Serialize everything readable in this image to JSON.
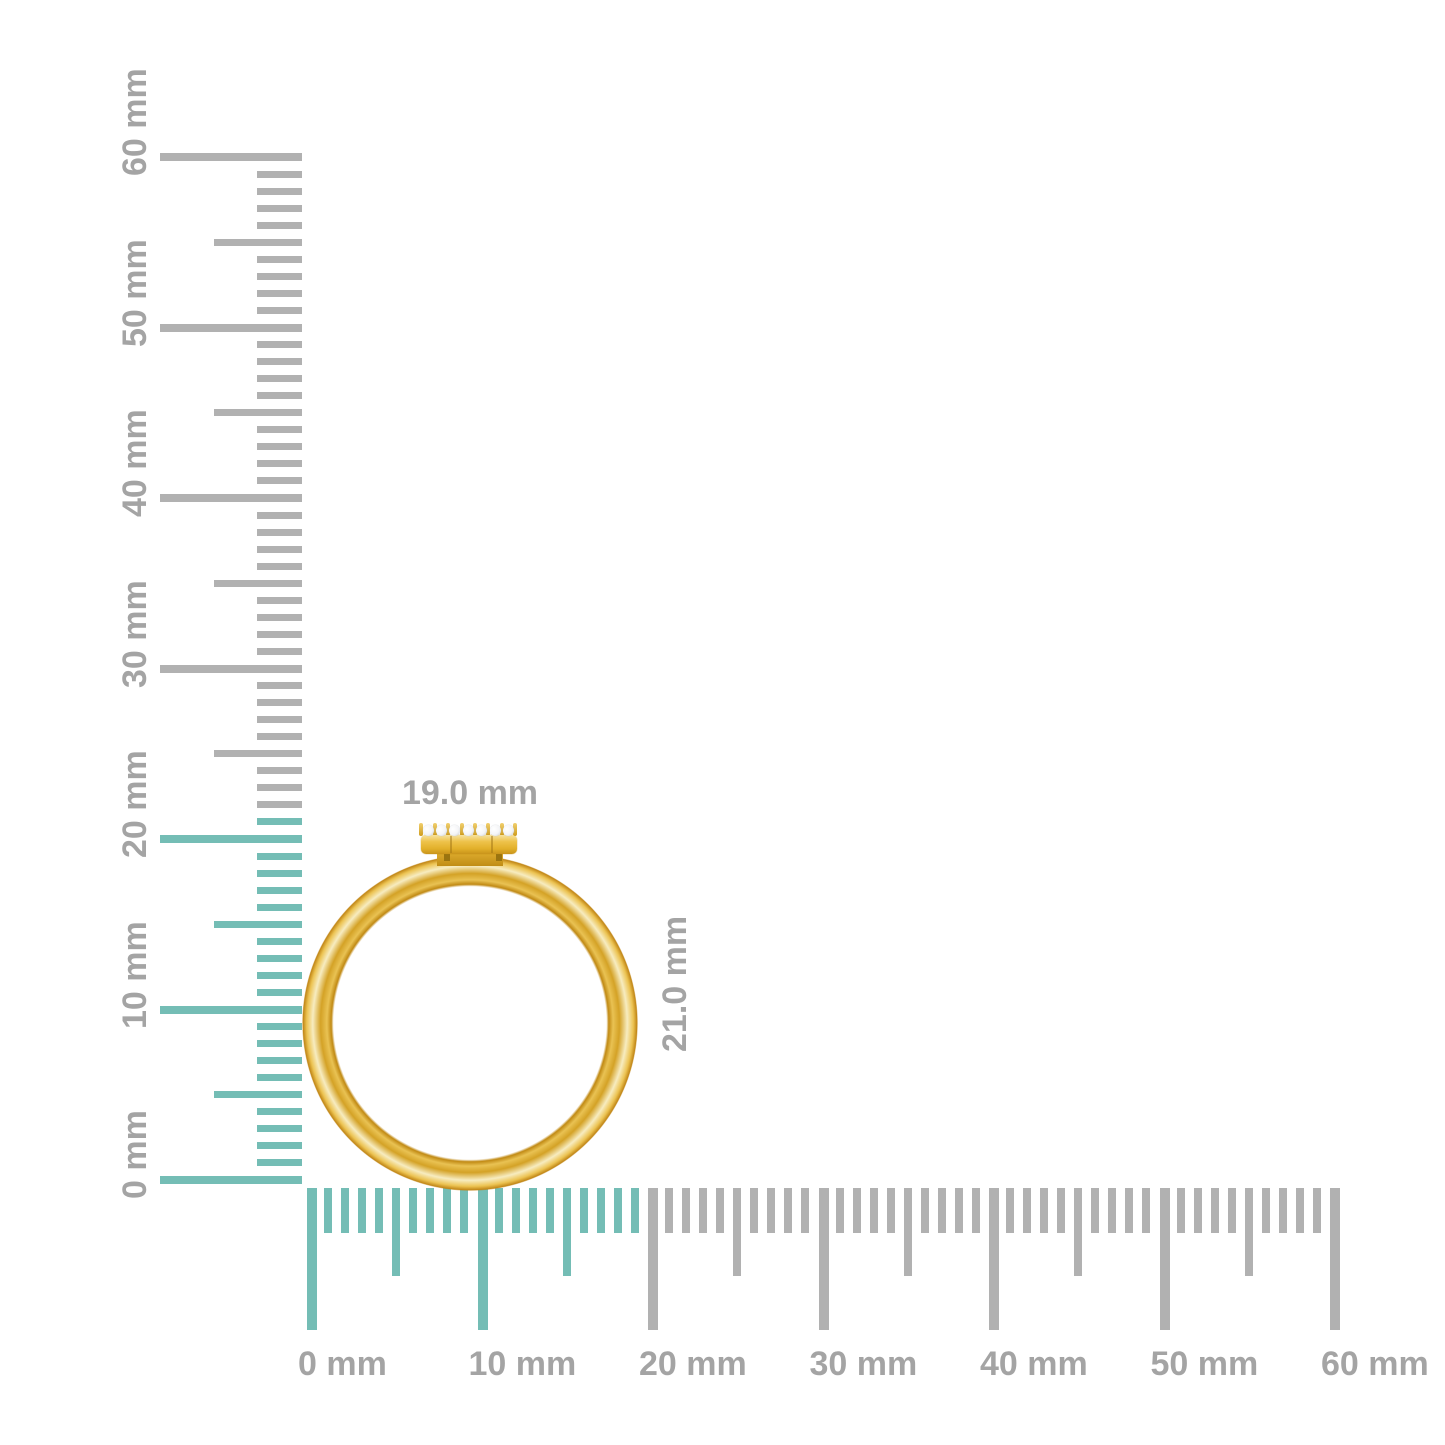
{
  "colors": {
    "background": "#ffffff",
    "tick_gray": "#b1b1b1",
    "ruler_label_gray": "#a4a4a4",
    "highlight_teal": "#74bdb5",
    "gold_light": "#f7ecc0",
    "gold_mid": "#e2b02a",
    "gold_dark": "#c18616",
    "diamond_white": "#f4f5f7"
  },
  "rulers": {
    "unit": "mm",
    "min_mm": 0,
    "max_mm": 60,
    "minor_step_mm": 1,
    "medium_step_mm": 5,
    "major_step_mm": 10,
    "vertical": {
      "labels": [
        "0 mm",
        "10 mm",
        "20 mm",
        "30 mm",
        "40 mm",
        "50 mm",
        "60 mm"
      ],
      "highlighted_up_to_mm": 21
    },
    "horizontal": {
      "labels": [
        "0 mm",
        "10 mm",
        "20 mm",
        "30 mm",
        "40 mm",
        "50 mm",
        "60 mm"
      ],
      "highlighted_up_to_mm": 19
    }
  },
  "measurements": {
    "ring_width_label": "19.0 mm",
    "ring_height_label": "21.0 mm"
  },
  "ring": {
    "description": "gold ring with diamond-set round head, front view",
    "diamond_count": 7
  }
}
